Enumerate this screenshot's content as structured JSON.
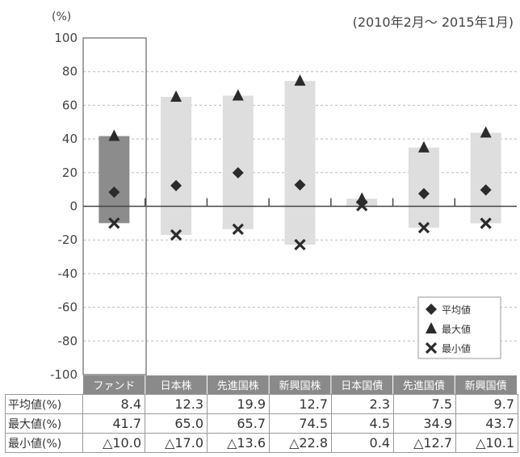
{
  "chart_data": {
    "type": "range-bar",
    "unit_label": "(%)",
    "period_label": "(2010年2月～ 2015年1月)",
    "yticks": [
      "100",
      "80",
      "60",
      "40",
      "20",
      "0",
      "-20",
      "-40",
      "-60",
      "-80",
      "-100"
    ],
    "ylim": [
      -100,
      100
    ],
    "categories": [
      "ファンド",
      "日本株",
      "先進国株",
      "新興国株",
      "日本国債",
      "先進国債",
      "新興国債"
    ],
    "series": [
      {
        "name": "平均値",
        "marker": "diamond",
        "values": [
          8.4,
          12.3,
          19.9,
          12.7,
          2.3,
          7.5,
          9.7
        ]
      },
      {
        "name": "最大値",
        "marker": "triangle",
        "values": [
          41.7,
          65.0,
          65.7,
          74.5,
          4.5,
          34.9,
          43.7
        ]
      },
      {
        "name": "最小値",
        "marker": "cross",
        "values": [
          -10.0,
          -17.0,
          -13.6,
          -22.8,
          0.4,
          -12.7,
          -10.1
        ]
      }
    ],
    "legend_position": "bottom-right",
    "grid": true,
    "colors": {
      "fund_bar": "#8c8c8c",
      "other_bar": "#dedede",
      "header": "#8a8a8a",
      "marker": "#2b2b2b"
    }
  },
  "table": {
    "rows": [
      {
        "label": "平均値(%)",
        "values": [
          "8.4",
          "12.3",
          "19.9",
          "12.7",
          "2.3",
          "7.5",
          "9.7"
        ]
      },
      {
        "label": "最大値(%)",
        "values": [
          "41.7",
          "65.0",
          "65.7",
          "74.5",
          "4.5",
          "34.9",
          "43.7"
        ]
      },
      {
        "label": "最小値(%)",
        "values": [
          "△10.0",
          "△17.0",
          "△13.6",
          "△22.8",
          "0.4",
          "△12.7",
          "△10.1"
        ]
      }
    ]
  }
}
